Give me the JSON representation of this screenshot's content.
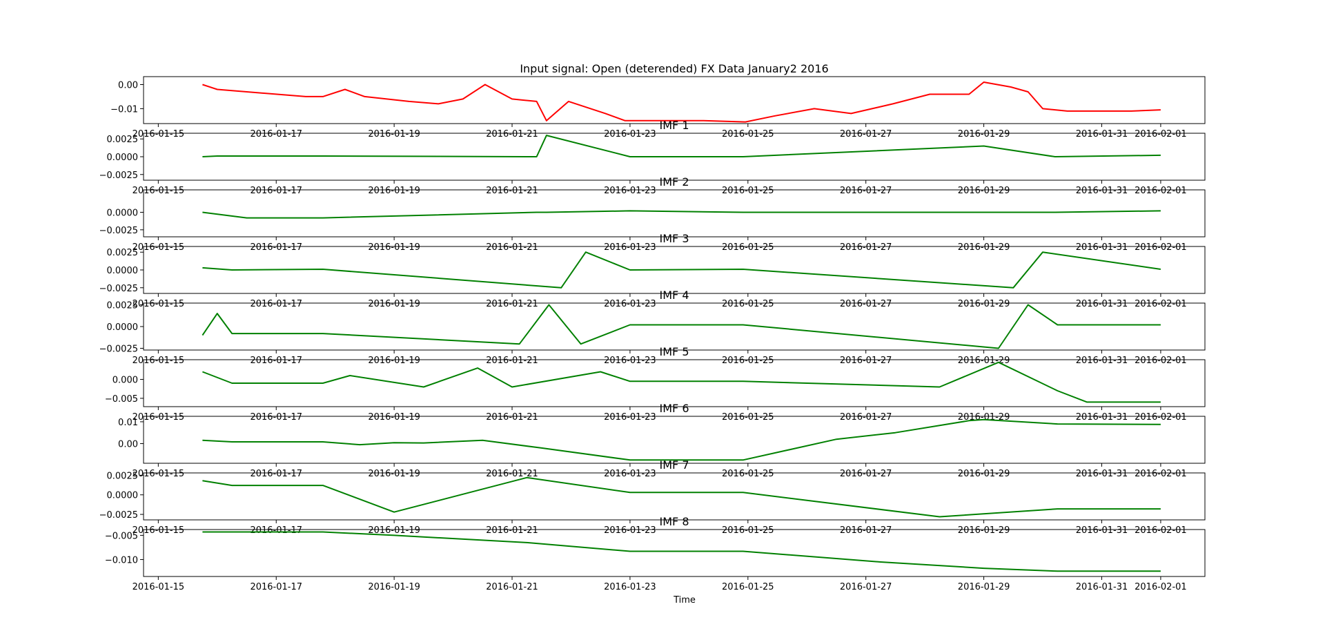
{
  "chart_data": {
    "type": "line",
    "xlabel": "Time",
    "x_ticks": [
      "2016-01-15",
      "2016-01-17",
      "2016-01-19",
      "2016-01-21",
      "2016-01-23",
      "2016-01-25",
      "2016-01-27",
      "2016-01-29",
      "2016-01-31",
      "2016-02-01"
    ],
    "x_range": [
      "2016-01-14T18:00",
      "2016-02-01T18:00"
    ],
    "panels": [
      {
        "title": "Input signal: Open (deterended) FX Data January2 2016",
        "color": "#ff0000",
        "yticks": [
          "0.00",
          "−0.01"
        ],
        "ytick_values": [
          0,
          -0.01
        ],
        "ylim": [
          -0.0162,
          0.0033
        ],
        "x": [
          "2016-01-15T18:00",
          "2016-01-16T00:00",
          "2016-01-17T12:00",
          "2016-01-17T19:00",
          "2016-01-18T04:00",
          "2016-01-18T12:00",
          "2016-01-19T06:00",
          "2016-01-19T18:00",
          "2016-01-20T04:00",
          "2016-01-20T13:00",
          "2016-01-21T00:00",
          "2016-01-21T10:00",
          "2016-01-21T14:00",
          "2016-01-21T23:00",
          "2016-01-22T14:00",
          "2016-01-22T22:00",
          "2016-01-24T06:00",
          "2016-01-24T23:00",
          "2016-01-25T11:00",
          "2016-01-26T03:00",
          "2016-01-26T18:00",
          "2016-01-27T11:00",
          "2016-01-28T02:00",
          "2016-01-28T18:00",
          "2016-01-29T00:00",
          "2016-01-29T11:00",
          "2016-01-29T18:00",
          "2016-01-30T00:00",
          "2016-01-30T10:00",
          "2016-01-31T12:00",
          "2016-02-01T00:00"
        ],
        "y": [
          0.0,
          -0.002,
          -0.005,
          -0.005,
          -0.002,
          -0.005,
          -0.007,
          -0.008,
          -0.006,
          0.0,
          -0.006,
          -0.007,
          -0.015,
          -0.007,
          -0.012,
          -0.015,
          -0.015,
          -0.0155,
          -0.013,
          -0.01,
          -0.012,
          -0.008,
          -0.004,
          -0.004,
          0.001,
          -0.001,
          -0.003,
          -0.01,
          -0.011,
          -0.011,
          -0.0105
        ]
      },
      {
        "title": "IMF 1",
        "color": "#008000",
        "yticks": [
          "0.0025",
          "0.0000",
          "−0.0025"
        ],
        "ytick_values": [
          0.0025,
          0,
          -0.0025
        ],
        "ylim": [
          -0.0033,
          0.0033
        ],
        "x": [
          "2016-01-15T18:00",
          "2016-01-16T00:00",
          "2016-01-17T19:00",
          "2016-01-21T10:00",
          "2016-01-21T14:00",
          "2016-01-23T00:00",
          "2016-01-24T22:00",
          "2016-01-29T00:00",
          "2016-01-30T05:00",
          "2016-02-01T00:00"
        ],
        "y": [
          0.0,
          0.0001,
          0.0001,
          0.0,
          0.003,
          0.0,
          0.0,
          0.0015,
          0.0,
          0.0002
        ]
      },
      {
        "title": "IMF 2",
        "color": "#008000",
        "yticks": [
          "0.0000",
          "−0.0025"
        ],
        "ytick_values": [
          0,
          -0.0025
        ],
        "ylim": [
          -0.0035,
          0.0032
        ],
        "x": [
          "2016-01-15T18:00",
          "2016-01-16T12:00",
          "2016-01-17T19:00",
          "2016-01-21T10:00",
          "2016-01-21T14:00",
          "2016-01-23T00:00",
          "2016-01-24T22:00",
          "2016-01-29T00:00",
          "2016-01-30T05:00",
          "2016-02-01T00:00"
        ],
        "y": [
          0.0,
          -0.0008,
          -0.0008,
          0.0,
          0.0,
          0.0002,
          0.0,
          0.0,
          0.0,
          0.0002
        ]
      },
      {
        "title": "IMF 3",
        "color": "#008000",
        "yticks": [
          "0.0025",
          "0.0000",
          "−0.0025"
        ],
        "ytick_values": [
          0.0025,
          0,
          -0.0025
        ],
        "ylim": [
          -0.0033,
          0.0033
        ],
        "x": [
          "2016-01-15T18:00",
          "2016-01-16T06:00",
          "2016-01-17T19:00",
          "2016-01-21T20:00",
          "2016-01-22T06:00",
          "2016-01-23T00:00",
          "2016-01-24T22:00",
          "2016-01-29T12:00",
          "2016-01-30T00:00",
          "2016-02-01T00:00"
        ],
        "y": [
          0.0003,
          0.0,
          0.0001,
          -0.0025,
          0.0025,
          0.0,
          0.0001,
          -0.0025,
          0.0025,
          0.0001
        ]
      },
      {
        "title": "IMF 4",
        "color": "#008000",
        "yticks": [
          "0.0025",
          "0.0000",
          "−0.0025"
        ],
        "ytick_values": [
          0.0025,
          0,
          -0.0025
        ],
        "ylim": [
          -0.0027,
          0.0027
        ],
        "x": [
          "2016-01-15T18:00",
          "2016-01-16T00:00",
          "2016-01-16T06:00",
          "2016-01-17T19:00",
          "2016-01-21T03:00",
          "2016-01-21T15:00",
          "2016-01-22T04:00",
          "2016-01-23T00:00",
          "2016-01-24T22:00",
          "2016-01-29T06:00",
          "2016-01-29T18:00",
          "2016-01-30T06:00",
          "2016-02-01T00:00"
        ],
        "y": [
          -0.001,
          0.0015,
          -0.0008,
          -0.0008,
          -0.002,
          0.0025,
          -0.002,
          0.0002,
          0.0002,
          -0.0025,
          0.0025,
          0.0002,
          0.0002
        ]
      },
      {
        "title": "IMF 5",
        "color": "#008000",
        "yticks": [
          "0.000",
          "−0.005"
        ],
        "ytick_values": [
          0,
          -0.005
        ],
        "ylim": [
          -0.0072,
          0.0052
        ],
        "x": [
          "2016-01-15T18:00",
          "2016-01-16T06:00",
          "2016-01-17T19:00",
          "2016-01-18T06:00",
          "2016-01-19T12:00",
          "2016-01-20T10:00",
          "2016-01-21T00:00",
          "2016-01-22T12:00",
          "2016-01-23T00:00",
          "2016-01-24T22:00",
          "2016-01-28T06:00",
          "2016-01-29T06:00",
          "2016-01-30T06:00",
          "2016-01-30T18:00",
          "2016-02-01T00:00"
        ],
        "y": [
          0.002,
          -0.001,
          -0.001,
          0.001,
          -0.002,
          0.003,
          -0.002,
          0.002,
          -0.0005,
          -0.0005,
          -0.002,
          0.0045,
          -0.003,
          -0.006,
          -0.006
        ]
      },
      {
        "title": "IMF 6",
        "color": "#008000",
        "yticks": [
          "0.01",
          "0.00"
        ],
        "ytick_values": [
          0.01,
          0
        ],
        "ylim": [
          -0.009,
          0.0125
        ],
        "x": [
          "2016-01-15T18:00",
          "2016-01-16T06:00",
          "2016-01-17T19:00",
          "2016-01-18T10:00",
          "2016-01-19T00:00",
          "2016-01-19T12:00",
          "2016-01-20T12:00",
          "2016-01-21T12:00",
          "2016-01-23T00:00",
          "2016-01-24T22:00",
          "2016-01-26T12:00",
          "2016-01-27T12:00",
          "2016-01-28T18:00",
          "2016-01-29T00:00",
          "2016-01-30T06:00",
          "2016-02-01T00:00"
        ],
        "y": [
          0.0015,
          0.0008,
          0.0008,
          -0.0005,
          0.0004,
          0.0003,
          0.0015,
          -0.002,
          -0.0075,
          -0.0075,
          0.002,
          0.005,
          0.0105,
          0.011,
          0.009,
          0.0088
        ]
      },
      {
        "title": "IMF 7",
        "color": "#008000",
        "yticks": [
          "0.0025",
          "0.0000",
          "−0.0025"
        ],
        "ytick_values": [
          0.0025,
          0,
          -0.0025
        ],
        "ylim": [
          -0.0032,
          0.0028
        ],
        "x": [
          "2016-01-15T18:00",
          "2016-01-16T06:00",
          "2016-01-17T19:00",
          "2016-01-19T00:00",
          "2016-01-21T06:00",
          "2016-01-23T00:00",
          "2016-01-24T22:00",
          "2016-01-28T06:00",
          "2016-01-30T06:00",
          "2016-02-01T00:00"
        ],
        "y": [
          0.0018,
          0.0012,
          0.0012,
          -0.0022,
          0.0022,
          0.0003,
          0.0003,
          -0.0028,
          -0.0018,
          -0.0018
        ]
      },
      {
        "title": "IMF 8",
        "color": "#008000",
        "yticks": [
          "−0.005",
          "−0.010"
        ],
        "ytick_values": [
          -0.005,
          -0.01
        ],
        "ylim": [
          -0.0135,
          -0.0038
        ],
        "x": [
          "2016-01-15T18:00",
          "2016-01-17T19:00",
          "2016-01-19T00:00",
          "2016-01-21T06:00",
          "2016-01-23T00:00",
          "2016-01-24T22:00",
          "2016-01-27T06:00",
          "2016-01-29T00:00",
          "2016-01-30T06:00",
          "2016-02-01T00:00"
        ],
        "y": [
          -0.0043,
          -0.0043,
          -0.005,
          -0.0065,
          -0.0083,
          -0.0083,
          -0.0105,
          -0.0118,
          -0.0124,
          -0.0124
        ]
      }
    ]
  }
}
